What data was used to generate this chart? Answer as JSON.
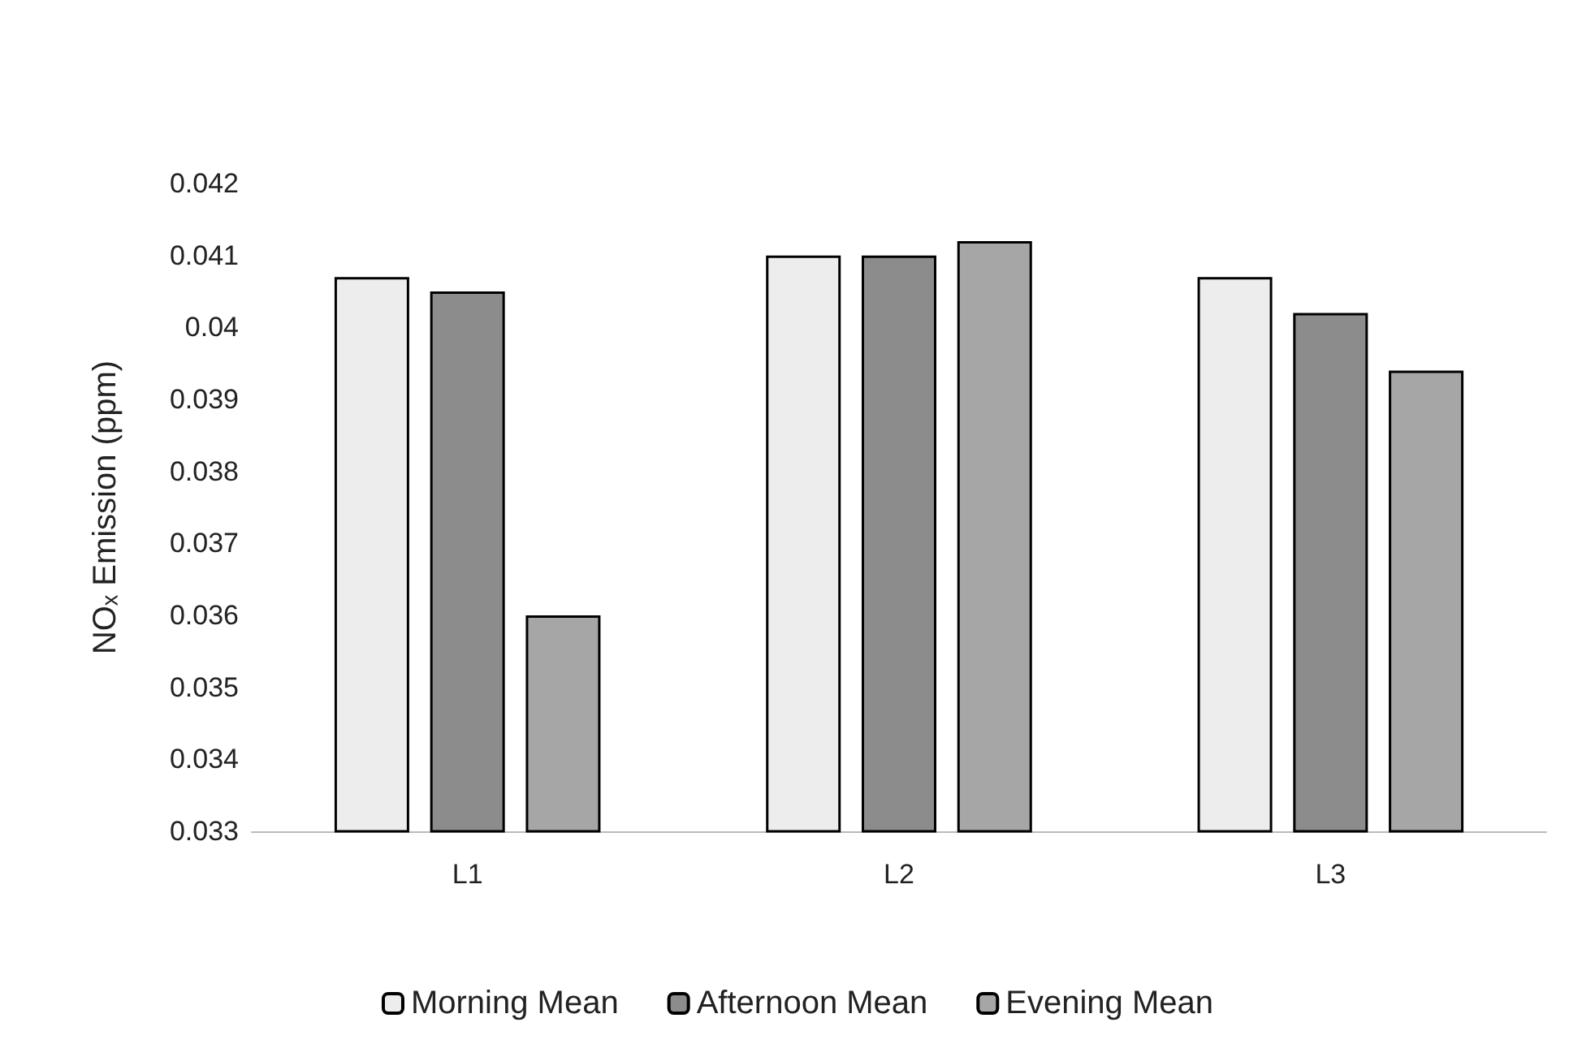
{
  "chart_data": {
    "type": "bar",
    "ylabel": "NOₓ Emission (ppm)",
    "categories": [
      "L1",
      "L2",
      "L3"
    ],
    "series": [
      {
        "name": "Morning Mean",
        "color": "#ededed",
        "values": [
          0.0407,
          0.041,
          0.0407
        ]
      },
      {
        "name": "Afternoon Mean",
        "color": "#8c8c8c",
        "values": [
          0.0405,
          0.041,
          0.0402
        ]
      },
      {
        "name": "Evening Mean",
        "color": "#a6a6a6",
        "values": [
          0.036,
          0.0412,
          0.0394
        ]
      }
    ],
    "ylim": [
      0.033,
      0.042
    ],
    "yticks": [
      0.033,
      0.034,
      0.035,
      0.036,
      0.037,
      0.038,
      0.039,
      0.04,
      0.041,
      0.042
    ],
    "grid": false,
    "legend": "bottom"
  }
}
